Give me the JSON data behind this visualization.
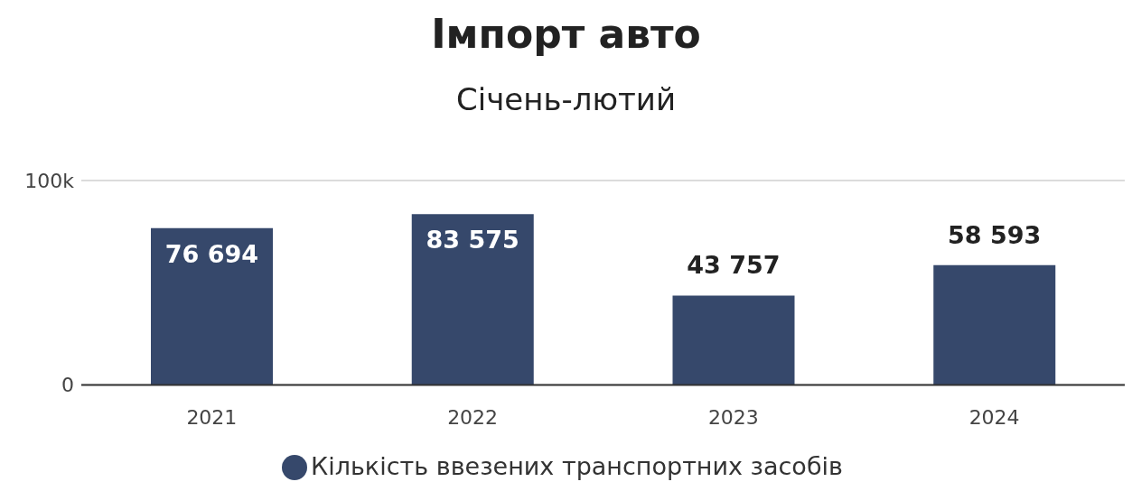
{
  "chart_data": {
    "type": "bar",
    "title": "Імпорт авто",
    "subtitle": "Січень-лютий",
    "categories": [
      "2021",
      "2022",
      "2023",
      "2024"
    ],
    "series": [
      {
        "name": "Кількість ввезених транспортних засобів",
        "color": "#36486b",
        "values": [
          76694,
          83575,
          43757,
          58593
        ],
        "value_labels": [
          "76 694",
          "83 575",
          "43 757",
          "58 593"
        ]
      }
    ],
    "ylim": [
      0,
      100000
    ],
    "yticks": [
      0,
      {
        "value": 100000,
        "label": "100k"
      }
    ],
    "grid": "y",
    "legend": "bottom"
  }
}
